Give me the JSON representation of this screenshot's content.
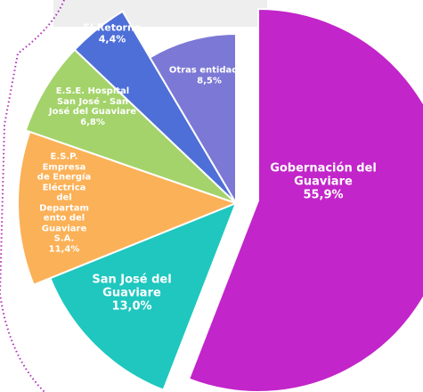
{
  "chart_data": {
    "type": "pie",
    "categories": [
      "Gobernación del Guaviare",
      "San José del Guaviare",
      "E.S.P. Empresa de Energía Eléctrica del Departamento del Guaviare S.A.",
      "E.S.E. Hospital San José - San José del Guaviare",
      "El Retorno",
      "Otras entidades"
    ],
    "values": [
      55.9,
      13.0,
      11.4,
      6.8,
      4.4,
      8.5
    ],
    "value_labels": [
      "55,9%",
      "13,0%",
      "11,4%",
      "6,8%",
      "4,4%",
      "8,5%"
    ],
    "colors": [
      "#c225c9",
      "#1fc7bf",
      "#fbb157",
      "#a3d36a",
      "#4e6fd8",
      "#7c78d5"
    ]
  }
}
